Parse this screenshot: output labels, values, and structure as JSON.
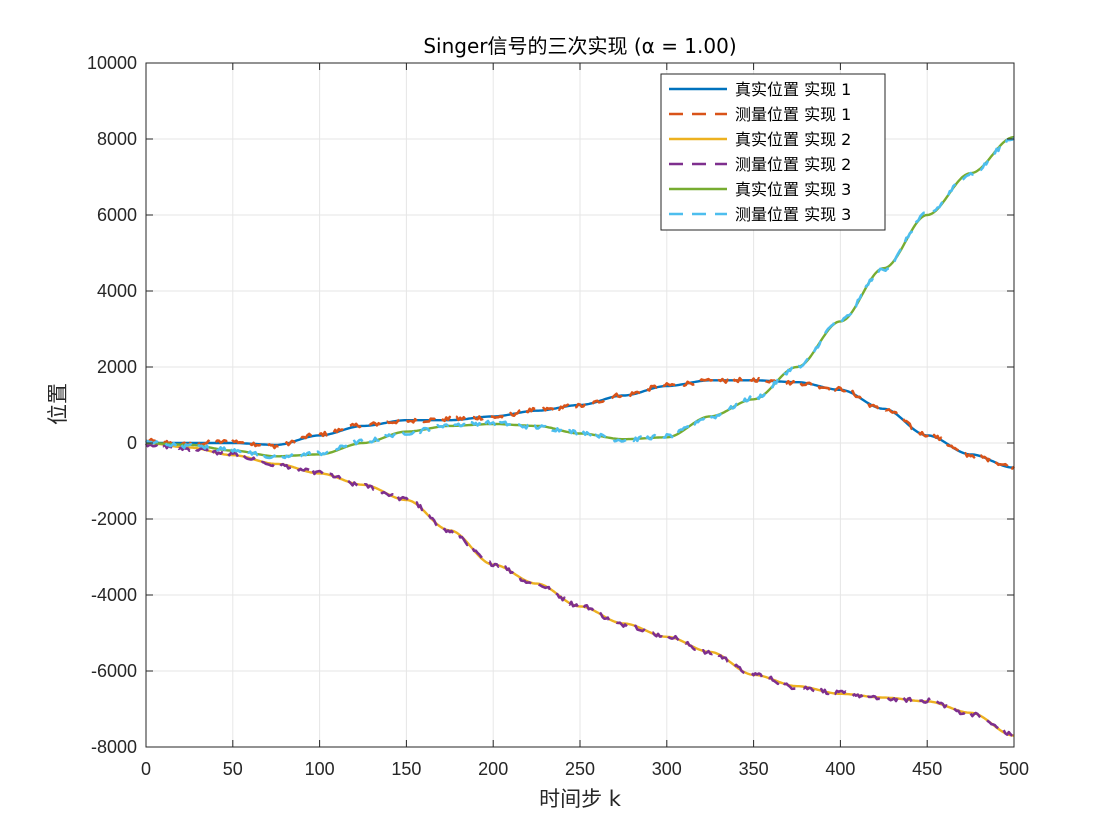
{
  "chart_data": {
    "type": "line",
    "title": "Singer信号的三次实现 (α = 1.00)",
    "xlabel": "时间步 k",
    "ylabel": "位置",
    "xlim": [
      0,
      500
    ],
    "ylim": [
      -8000,
      10000
    ],
    "x_ticks": [
      0,
      50,
      100,
      150,
      200,
      250,
      300,
      350,
      400,
      450,
      500
    ],
    "y_ticks": [
      -8000,
      -6000,
      -4000,
      -2000,
      0,
      2000,
      4000,
      6000,
      8000,
      10000
    ],
    "x_tick_labels": [
      "0",
      "50",
      "100",
      "150",
      "200",
      "250",
      "300",
      "350",
      "400",
      "450",
      "500"
    ],
    "y_tick_labels": [
      "-8000",
      "-6000",
      "-4000",
      "-2000",
      "0",
      "2000",
      "4000",
      "6000",
      "8000",
      "10000"
    ],
    "grid": true,
    "legend_position": "top-right",
    "x": [
      0,
      25,
      50,
      75,
      100,
      125,
      150,
      175,
      200,
      225,
      250,
      275,
      300,
      325,
      350,
      375,
      400,
      425,
      450,
      475,
      500
    ],
    "series": [
      {
        "name": "真实位置 实现 1",
        "style": "solid",
        "color": "#0072BD",
        "values": [
          0,
          0,
          0,
          -50,
          200,
          450,
          600,
          600,
          700,
          850,
          1000,
          1250,
          1500,
          1650,
          1650,
          1600,
          1400,
          900,
          200,
          -300,
          -650
        ]
      },
      {
        "name": "测量位置 实现 1",
        "style": "dashed",
        "color": "#D95319",
        "values": [
          50,
          -20,
          40,
          -80,
          230,
          480,
          580,
          630,
          680,
          870,
          980,
          1270,
          1520,
          1630,
          1670,
          1580,
          1420,
          880,
          220,
          -320,
          -620
        ]
      },
      {
        "name": "真实位置 实现 2",
        "style": "solid",
        "color": "#EDB120",
        "values": [
          0,
          -120,
          -320,
          -550,
          -800,
          -1100,
          -1500,
          -2300,
          -3200,
          -3700,
          -4300,
          -4750,
          -5100,
          -5500,
          -6100,
          -6400,
          -6600,
          -6700,
          -6800,
          -7100,
          -7700
        ]
      },
      {
        "name": "测量位置 实现 2",
        "style": "dashed",
        "color": "#7E2F8E",
        "values": [
          -30,
          -150,
          -300,
          -580,
          -780,
          -1130,
          -1480,
          -2330,
          -3180,
          -3730,
          -4280,
          -4780,
          -5080,
          -5530,
          -6080,
          -6430,
          -6580,
          -6730,
          -6780,
          -7130,
          -7680
        ]
      },
      {
        "name": "真实位置 实现 3",
        "style": "solid",
        "color": "#77AC30",
        "values": [
          0,
          -50,
          -200,
          -350,
          -300,
          0,
          300,
          450,
          500,
          450,
          250,
          100,
          150,
          700,
          1150,
          2000,
          3200,
          4600,
          6000,
          7100,
          8050
        ]
      },
      {
        "name": "测量位置 实现 3",
        "style": "dashed",
        "color": "#4DBEEE",
        "values": [
          20,
          -80,
          -170,
          -380,
          -270,
          40,
          270,
          480,
          530,
          420,
          280,
          80,
          180,
          680,
          1180,
          1980,
          3230,
          4580,
          6030,
          7080,
          8020
        ]
      }
    ]
  },
  "colors": {
    "axis": "#262626",
    "grid": "#e6e6e6",
    "legend_border": "#262626"
  }
}
